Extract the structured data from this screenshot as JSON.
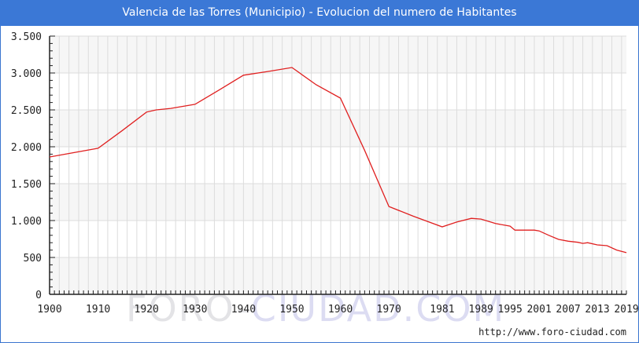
{
  "title": "Valencia de las Torres (Municipio) - Evolucion del numero de Habitantes",
  "watermark": {
    "part1": "FORO-",
    "part2": "CIUDAD.COM"
  },
  "source": "http://www.foro-ciudad.com",
  "colors": {
    "title_bg": "#3b78d6",
    "line": "#e02020",
    "grid": "#dcdcdc",
    "plot_bg": "#f4f4f4"
  },
  "chart_data": {
    "type": "line",
    "title": "Valencia de las Torres (Municipio) - Evolucion del numero de Habitantes",
    "xlabel": "",
    "ylabel": "",
    "ylim": [
      0,
      3500
    ],
    "xlim": [
      1900,
      2019
    ],
    "grid": true,
    "legend": "none",
    "y_ticks": [
      "0",
      "500",
      "1.000",
      "1.500",
      "2.000",
      "2.500",
      "3.000",
      "3.500"
    ],
    "x_ticks": [
      "1900",
      "1910",
      "1920",
      "1930",
      "1940",
      "1950",
      "1960",
      "1970",
      "1981",
      "1989",
      "1995",
      "2001",
      "2007",
      "2013",
      "2019"
    ],
    "series": [
      {
        "name": "Habitantes",
        "x": [
          1900,
          1910,
          1915,
          1920,
          1922,
          1925,
          1930,
          1935,
          1940,
          1945,
          1950,
          1955,
          1960,
          1965,
          1970,
          1975,
          1981,
          1984,
          1987,
          1989,
          1992,
          1995,
          1996,
          1998,
          2000,
          2001,
          2003,
          2005,
          2007,
          2009,
          2010,
          2011,
          2013,
          2015,
          2017,
          2019
        ],
        "values": [
          1862,
          1980,
          2220,
          2470,
          2500,
          2520,
          2575,
          2770,
          2970,
          3020,
          3074,
          2840,
          2660,
          1950,
          1190,
          1060,
          915,
          980,
          1030,
          1020,
          960,
          925,
          870,
          870,
          870,
          860,
          800,
          745,
          720,
          705,
          690,
          700,
          670,
          660,
          600,
          565
        ]
      }
    ]
  }
}
